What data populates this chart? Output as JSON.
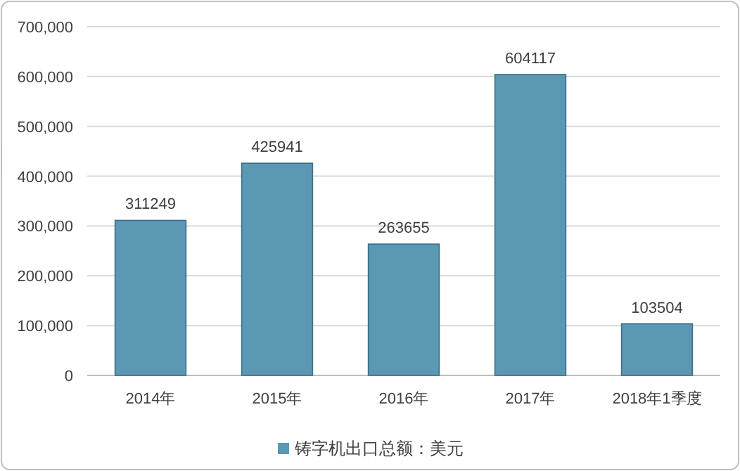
{
  "chart_data": {
    "type": "bar",
    "categories": [
      "2014年",
      "2015年",
      "2016年",
      "2017年",
      "2018年1季度"
    ],
    "series": [
      {
        "name": "铸字机出口总额：美元",
        "color": "#5b98b4",
        "values": [
          311249,
          425941,
          263655,
          604117,
          103504
        ]
      }
    ],
    "ylim": [
      0,
      700000
    ],
    "yticks": [
      0,
      {
        "value": 100000,
        "label": "100,000"
      },
      {
        "value": 200000,
        "label": "200,000"
      },
      {
        "value": 300000,
        "label": "300,000"
      },
      {
        "value": 400000,
        "label": "400,000"
      },
      {
        "value": 500000,
        "label": "500,000"
      },
      {
        "value": 600000,
        "label": "600,000"
      },
      {
        "value": 700000,
        "label": "700,000"
      }
    ],
    "grid": "y",
    "legend": "bottom",
    "data_labels": true
  }
}
